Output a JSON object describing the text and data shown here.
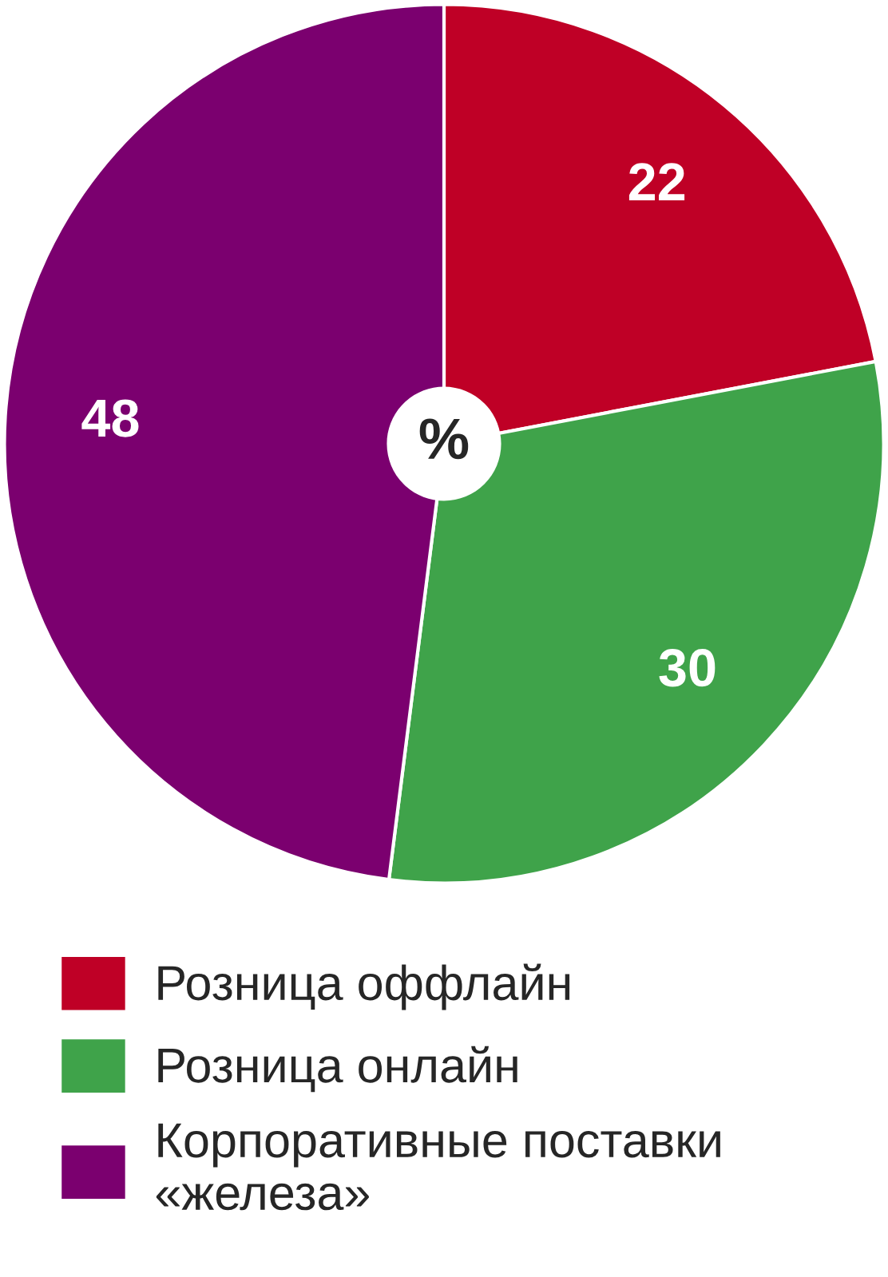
{
  "chart_data": {
    "type": "pie",
    "categories": [
      "Розница оффлайн",
      "Розница онлайн",
      "Корпоративные поставки\n«железа»"
    ],
    "values": [
      22,
      30,
      48
    ],
    "colors": [
      "#bf0026",
      "#3fa34a",
      "#7b006f"
    ],
    "data_labels": true,
    "annotations": [
      "%"
    ],
    "legend": "bottom"
  }
}
